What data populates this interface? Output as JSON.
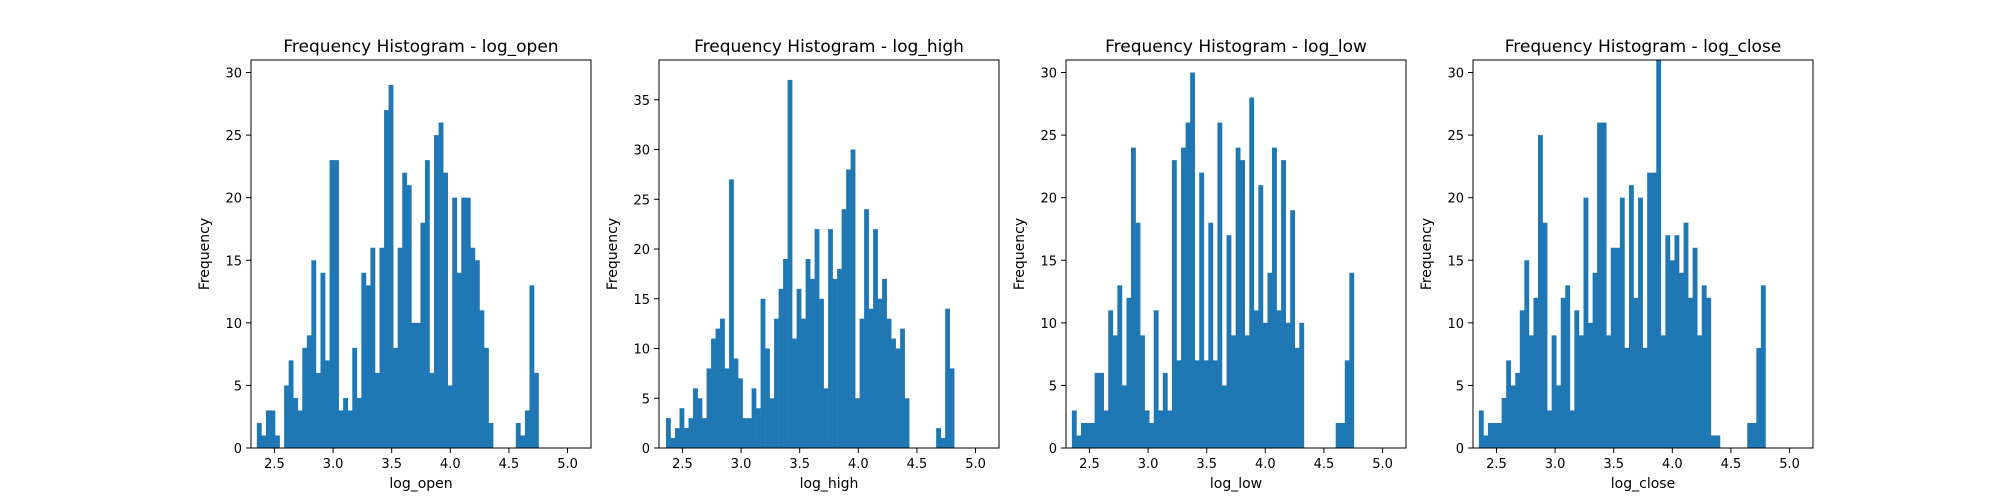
{
  "chart_data": [
    {
      "type": "bar",
      "title": "Frequency Histogram - log_open",
      "xlabel": "log_open",
      "ylabel": "Frequency",
      "xlim": [
        2.3,
        5.2
      ],
      "ylim": [
        0,
        31
      ],
      "x_ticks": [
        "2.5",
        "3.0",
        "3.5",
        "4.0",
        "4.5",
        "5.0"
      ],
      "y_ticks": [
        "0",
        "5",
        "10",
        "15",
        "20",
        "25",
        "30"
      ],
      "bin_start": 2.35,
      "bin_width": 0.03875,
      "values": [
        2,
        1,
        3,
        3,
        1,
        0,
        5,
        7,
        4,
        3,
        8,
        9,
        15,
        6,
        14,
        7,
        23,
        23,
        3,
        4,
        3,
        8,
        4,
        14,
        13,
        16,
        6,
        16,
        27,
        29,
        8,
        16,
        22,
        21,
        10,
        10,
        18,
        23,
        6,
        25,
        26,
        22,
        5,
        20,
        14,
        20,
        20,
        16,
        15,
        11,
        8,
        2,
        0,
        0,
        0,
        0,
        0,
        2,
        1,
        3,
        13,
        6
      ]
    },
    {
      "type": "bar",
      "title": "Frequency Histogram - log_high",
      "xlabel": "log_high",
      "ylabel": "Frequency",
      "xlim": [
        2.3,
        5.2
      ],
      "ylim": [
        0,
        39
      ],
      "x_ticks": [
        "2.5",
        "3.0",
        "3.5",
        "4.0",
        "4.5",
        "5.0"
      ],
      "y_ticks": [
        "0",
        "5",
        "10",
        "15",
        "20",
        "25",
        "30",
        "35"
      ],
      "bin_start": 2.36,
      "bin_width": 0.0384,
      "values": [
        3,
        1,
        2,
        4,
        2,
        3,
        6,
        5,
        3,
        8,
        11,
        12,
        13,
        8,
        27,
        9,
        7,
        3,
        3,
        6,
        4,
        15,
        10,
        5,
        13,
        16,
        19,
        37,
        11,
        16,
        13,
        19,
        17,
        22,
        15,
        6,
        22,
        17,
        18,
        24,
        28,
        30,
        5,
        13,
        24,
        14,
        22,
        15,
        17,
        13,
        11,
        10,
        12,
        5,
        0,
        0,
        0,
        0,
        0,
        0,
        2,
        1,
        14,
        8
      ]
    },
    {
      "type": "bar",
      "title": "Frequency Histogram - log_low",
      "xlabel": "log_low",
      "ylabel": "Frequency",
      "xlim": [
        2.3,
        5.2
      ],
      "ylim": [
        0,
        31
      ],
      "x_ticks": [
        "2.5",
        "3.0",
        "3.5",
        "4.0",
        "4.5",
        "5.0"
      ],
      "y_ticks": [
        "0",
        "5",
        "10",
        "15",
        "20",
        "25",
        "30"
      ],
      "bin_start": 2.35,
      "bin_width": 0.0388,
      "values": [
        3,
        1,
        2,
        2,
        2,
        6,
        6,
        3,
        11,
        9,
        13,
        5,
        12,
        24,
        18,
        9,
        3,
        2,
        11,
        3,
        6,
        3,
        23,
        7,
        24,
        26,
        30,
        7,
        22,
        7,
        18,
        7,
        26,
        5,
        17,
        9,
        24,
        23,
        9,
        28,
        11,
        21,
        10,
        14,
        24,
        11,
        23,
        10,
        19,
        8,
        10,
        0,
        0,
        0,
        0,
        0,
        0,
        0,
        2,
        2,
        7,
        14
      ]
    },
    {
      "type": "bar",
      "title": "Frequency Histogram - log_close",
      "xlabel": "log_close",
      "ylabel": "Frequency",
      "xlim": [
        2.3,
        5.2
      ],
      "ylim": [
        0,
        31
      ],
      "x_ticks": [
        "2.5",
        "3.0",
        "3.5",
        "4.0",
        "4.5",
        "5.0"
      ],
      "y_ticks": [
        "0",
        "5",
        "10",
        "15",
        "20",
        "25",
        "30"
      ],
      "bin_start": 2.35,
      "bin_width": 0.0388,
      "values": [
        3,
        1,
        2,
        2,
        2,
        4,
        7,
        5,
        6,
        11,
        15,
        9,
        12,
        25,
        18,
        3,
        9,
        5,
        12,
        13,
        3,
        11,
        9,
        20,
        10,
        14,
        26,
        26,
        9,
        16,
        16,
        20,
        8,
        21,
        12,
        20,
        8,
        22,
        22,
        31,
        9,
        17,
        15,
        17,
        14,
        18,
        12,
        16,
        9,
        13,
        12,
        1,
        1,
        0,
        0,
        0,
        0,
        0,
        0,
        2,
        2,
        8,
        13
      ]
    }
  ]
}
